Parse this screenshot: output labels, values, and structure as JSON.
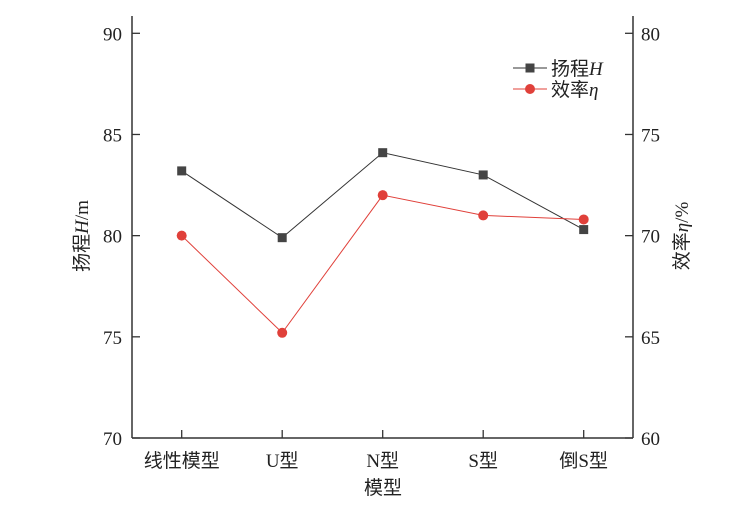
{
  "chart_data": {
    "type": "line",
    "categories": [
      "线性模型",
      "U型",
      "N型",
      "S型",
      "倒S型"
    ],
    "xlabel": "模型",
    "ylabel_left": {
      "text": "扬程",
      "var": "H",
      "unit": "/m"
    },
    "ylabel_right": {
      "text": "效率",
      "var": "η",
      "unit": "/%"
    },
    "ylim_left": [
      70,
      90
    ],
    "ylim_right": [
      60,
      80
    ],
    "yticks_left": [
      70,
      75,
      80,
      85,
      90
    ],
    "yticks_right": [
      60,
      65,
      70,
      75,
      80
    ],
    "grid": false,
    "legend_position": "top-right",
    "series": [
      {
        "name": "扬程",
        "var": "H",
        "axis": "left",
        "marker": "square",
        "color": "#444444",
        "line_color": "#333333",
        "values": [
          83.2,
          79.9,
          84.1,
          83.0,
          80.3
        ]
      },
      {
        "name": "效率",
        "var": "η",
        "axis": "right",
        "marker": "circle",
        "color": "#e0403a",
        "line_color": "#e0403a",
        "values": [
          70.0,
          65.2,
          72.0,
          71.0,
          70.8
        ]
      }
    ]
  }
}
